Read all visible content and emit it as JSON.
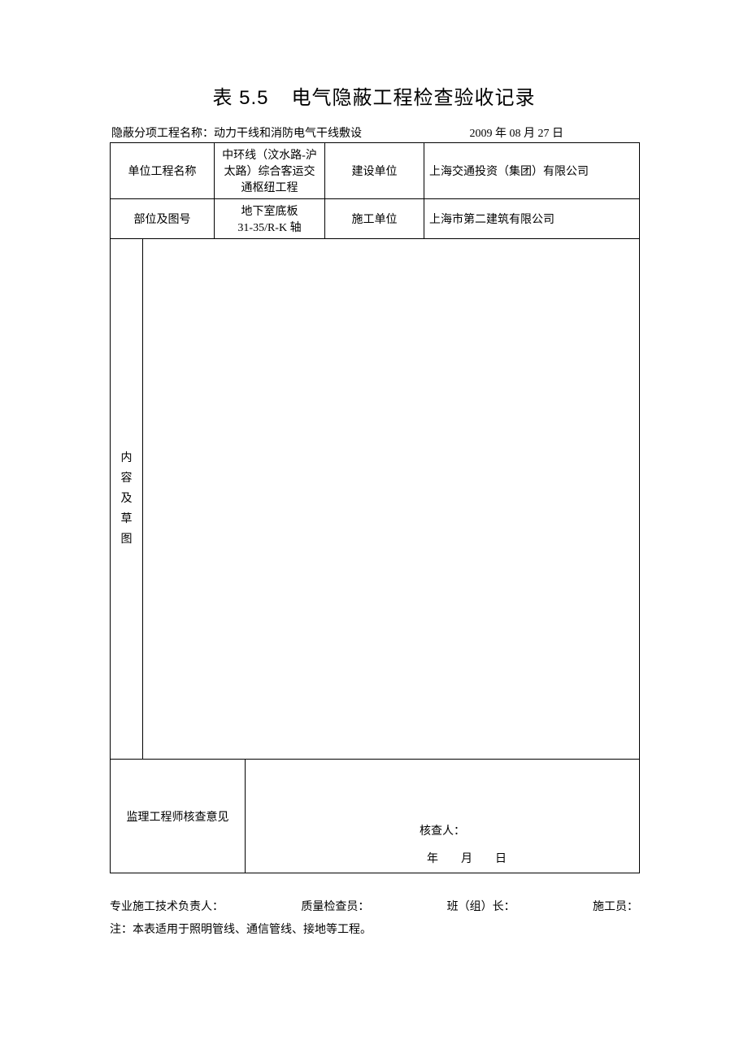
{
  "title": {
    "table_number": "表 5.5",
    "main_title": "电气隐蔽工程检查验收记录"
  },
  "header": {
    "project_name_label": "隐蔽分项工程名称：",
    "project_name_value": "动力干线和消防电气干线敷设",
    "date_text": "2009 年 08 月 27 日"
  },
  "table": {
    "row1": {
      "label1": "单位工程名称",
      "value1": "中环线（汶水路-沪太路）综合客运交通枢纽工程",
      "label2": "建设单位",
      "value2": "上海交通投资（集团）有限公司"
    },
    "row2": {
      "label1": "部位及图号",
      "value1_line1": "地下室底板",
      "value1_line2": "31-35/R-K 轴",
      "label2": "施工单位",
      "value2": "上海市第二建筑有限公司"
    },
    "content_label": "内容及草图",
    "review": {
      "label": "监理工程师核查意见",
      "reviewer_label": "核查人：",
      "date_template": "年  月  日"
    }
  },
  "footer": {
    "sig1": "专业施工技术负责人：",
    "sig2": "质量检查员：",
    "sig3": "班（组）长：",
    "sig4": "施工员：",
    "note": "注：本表适用于照明管线、通信管线、接地等工程。"
  },
  "style": {
    "text_color": "#000000",
    "background_color": "#ffffff",
    "border_color": "#000000",
    "title_fontsize": 24,
    "body_fontsize": 14
  }
}
